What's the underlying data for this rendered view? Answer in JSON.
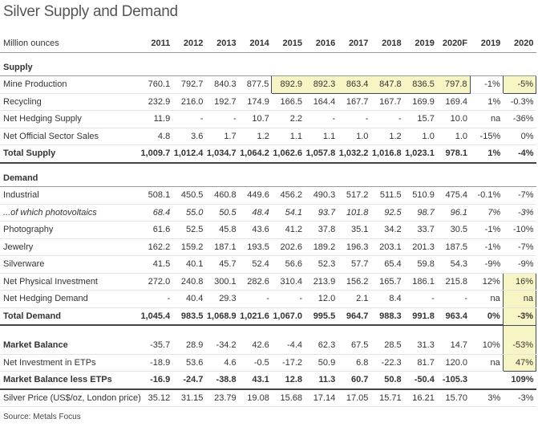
{
  "title": "Silver Supply and Demand",
  "table": {
    "header": [
      "Million ounces",
      "2011",
      "2012",
      "2013",
      "2014",
      "2015",
      "2016",
      "2017",
      "2018",
      "2019",
      "2020F",
      "2019",
      "2020"
    ],
    "rows": [
      {
        "label": "Supply"
      },
      {
        "label": "Mine Production",
        "cells": [
          "760.1",
          "792.7",
          "840.3",
          "877.5",
          "892.9",
          "892.3",
          "863.4",
          "847.8",
          "836.5",
          "797.8",
          "-1%",
          "-5%"
        ]
      },
      {
        "label": "Recycling",
        "cells": [
          "232.9",
          "216.0",
          "192.7",
          "174.9",
          "166.5",
          "164.4",
          "167.7",
          "167.7",
          "169.9",
          "169.4",
          "1%",
          "-0.3%"
        ]
      },
      {
        "label": "Net Hedging Supply",
        "cells": [
          "11.9",
          "-",
          "-",
          "10.7",
          "2.2",
          "-",
          "-",
          "-",
          "15.7",
          "10.0",
          "na",
          "-36%"
        ]
      },
      {
        "label": "Net Official Sector Sales",
        "cells": [
          "4.8",
          "3.6",
          "1.7",
          "1.2",
          "1.1",
          "1.1",
          "1.0",
          "1.2",
          "1.0",
          "1.0",
          "-15%",
          "0%"
        ]
      },
      {
        "label": "Total Supply",
        "cells": [
          "1,009.7",
          "1,012.4",
          "1,034.7",
          "1,064.2",
          "1,062.6",
          "1,057.8",
          "1,032.2",
          "1,016.8",
          "1,023.1",
          "978.1",
          "1%",
          "-4%"
        ]
      },
      {
        "label": "Demand"
      },
      {
        "label": "Industrial",
        "cells": [
          "508.1",
          "450.5",
          "460.8",
          "449.6",
          "456.2",
          "490.3",
          "517.2",
          "511.5",
          "510.9",
          "475.4",
          "-0.1%",
          "-7%"
        ]
      },
      {
        "label": "...of which photovoltaics",
        "cells": [
          "68.4",
          "55.0",
          "50.5",
          "48.4",
          "54.1",
          "93.7",
          "101.8",
          "92.5",
          "98.7",
          "96.1",
          "7%",
          "-3%"
        ]
      },
      {
        "label": "Photography",
        "cells": [
          "61.6",
          "52.5",
          "45.8",
          "43.6",
          "41.2",
          "37.8",
          "35.1",
          "34.2",
          "33.7",
          "30.5",
          "-1%",
          "-10%"
        ]
      },
      {
        "label": "Jewelry",
        "cells": [
          "162.2",
          "159.2",
          "187.1",
          "193.5",
          "202.6",
          "189.2",
          "196.3",
          "203.1",
          "201.3",
          "187.5",
          "-1%",
          "-7%"
        ]
      },
      {
        "label": "Silverware",
        "cells": [
          "41.5",
          "40.1",
          "45.7",
          "52.4",
          "56.6",
          "52.3",
          "57.7",
          "65.4",
          "59.8",
          "54.3",
          "-9%",
          "-9%"
        ]
      },
      {
        "label": "Net Physical Investment",
        "cells": [
          "272.0",
          "240.8",
          "300.1",
          "282.6",
          "310.4",
          "213.9",
          "156.2",
          "165.7",
          "186.1",
          "215.8",
          "12%",
          "16%"
        ]
      },
      {
        "label": "Net Hedging Demand",
        "cells": [
          "-",
          "40.4",
          "29.3",
          "-",
          "-",
          "12.0",
          "2.1",
          "8.4",
          "-",
          "-",
          "na",
          "na"
        ]
      },
      {
        "label": "Total Demand",
        "cells": [
          "1,045.4",
          "983.5",
          "1,068.9",
          "1,021.6",
          "1,067.0",
          "995.5",
          "964.7",
          "988.3",
          "991.8",
          "963.4",
          "0%",
          "-3%"
        ]
      },
      {
        "label": "Market Balance",
        "cells": [
          "-35.7",
          "28.9",
          "-34.2",
          "42.6",
          "-4.4",
          "62.3",
          "67.5",
          "28.5",
          "31.3",
          "14.7",
          "10%",
          "-53%"
        ]
      },
      {
        "label": "Net Investment in ETPs",
        "cells": [
          "-18.9",
          "53.6",
          "4.6",
          "-0.5",
          "-17.2",
          "50.9",
          "6.8",
          "-22.3",
          "81.7",
          "120.0",
          "na",
          "47%"
        ]
      },
      {
        "label": "Market Balance less ETPs",
        "cells": [
          "-16.9",
          "-24.7",
          "-38.8",
          "43.1",
          "12.8",
          "11.3",
          "60.7",
          "50.8",
          "-50.4",
          "-105.3",
          null,
          "109%"
        ]
      },
      {
        "label": "Silver Price (US$/oz, London price)",
        "cells": [
          "35.12",
          "31.15",
          "23.79",
          "19.08",
          "15.68",
          "17.14",
          "17.05",
          "15.71",
          "16.21",
          "15.70",
          "3%",
          "-3%"
        ]
      }
    ]
  },
  "source": "Source: Metals Focus"
}
